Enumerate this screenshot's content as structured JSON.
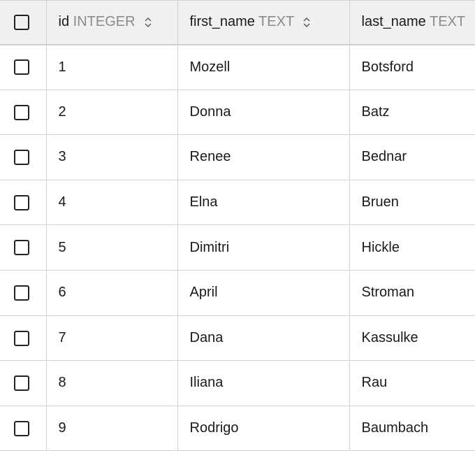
{
  "columns": [
    {
      "name": "id",
      "type": "INTEGER",
      "sort_icon": "sort-updown-icon"
    },
    {
      "name": "first_name",
      "type": "TEXT",
      "sort_icon": "sort-updown-icon"
    },
    {
      "name": "last_name",
      "type": "TEXT"
    }
  ],
  "rows": [
    {
      "id": "1",
      "first_name": "Mozell",
      "last_name": "Botsford"
    },
    {
      "id": "2",
      "first_name": "Donna",
      "last_name": "Batz"
    },
    {
      "id": "3",
      "first_name": "Renee",
      "last_name": "Bednar"
    },
    {
      "id": "4",
      "first_name": "Elna",
      "last_name": "Bruen"
    },
    {
      "id": "5",
      "first_name": "Dimitri",
      "last_name": "Hickle"
    },
    {
      "id": "6",
      "first_name": "April",
      "last_name": "Stroman"
    },
    {
      "id": "7",
      "first_name": "Dana",
      "last_name": "Kassulke"
    },
    {
      "id": "8",
      "first_name": "Iliana",
      "last_name": "Rau"
    },
    {
      "id": "9",
      "first_name": "Rodrigo",
      "last_name": "Baumbach"
    }
  ]
}
